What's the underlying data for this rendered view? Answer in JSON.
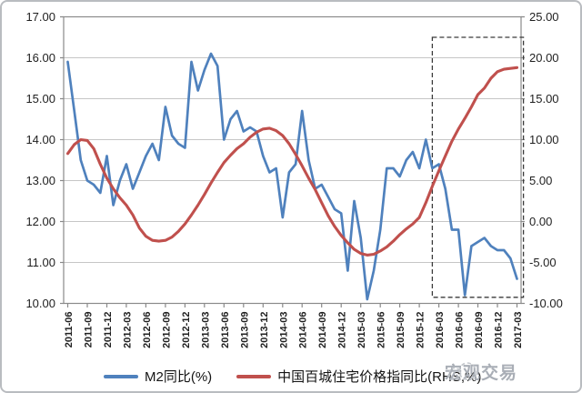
{
  "chart_data": {
    "type": "line",
    "title": "",
    "x": [
      "2011-06",
      "2011-07",
      "2011-08",
      "2011-09",
      "2011-10",
      "2011-11",
      "2011-12",
      "2012-01",
      "2012-02",
      "2012-03",
      "2012-04",
      "2012-05",
      "2012-06",
      "2012-07",
      "2012-08",
      "2012-09",
      "2012-10",
      "2012-11",
      "2012-12",
      "2013-01",
      "2013-02",
      "2013-03",
      "2013-04",
      "2013-05",
      "2013-06",
      "2013-07",
      "2013-08",
      "2013-09",
      "2013-10",
      "2013-11",
      "2013-12",
      "2014-01",
      "2014-02",
      "2014-03",
      "2014-04",
      "2014-05",
      "2014-06",
      "2014-07",
      "2014-08",
      "2014-09",
      "2014-10",
      "2014-11",
      "2014-12",
      "2015-01",
      "2015-02",
      "2015-03",
      "2015-04",
      "2015-05",
      "2015-06",
      "2015-07",
      "2015-08",
      "2015-09",
      "2015-10",
      "2015-11",
      "2015-12",
      "2016-01",
      "2016-02",
      "2016-03",
      "2016-04",
      "2016-05",
      "2016-06",
      "2016-07",
      "2016-08",
      "2016-09",
      "2016-10",
      "2016-11",
      "2016-12",
      "2017-01",
      "2017-02",
      "2017-03"
    ],
    "x_tick_every": 3,
    "x_tick_labels": [
      "2011-06",
      "2011-09",
      "2011-12",
      "2012-03",
      "2012-06",
      "2012-09",
      "2012-12",
      "2013-03",
      "2013-06",
      "2013-09",
      "2013-12",
      "2014-03",
      "2014-06",
      "2014-09",
      "2014-12",
      "2015-03",
      "2015-06",
      "2015-09",
      "2015-12",
      "2016-03",
      "2016-06",
      "2016-09",
      "2016-12",
      "2017-03"
    ],
    "series": [
      {
        "name": "M2同比(%)",
        "axis": "left",
        "color": "#4F81BD",
        "width": 2.7,
        "values": [
          15.9,
          14.7,
          13.5,
          13.0,
          12.9,
          12.7,
          13.6,
          12.4,
          13.0,
          13.4,
          12.8,
          13.2,
          13.6,
          13.9,
          13.5,
          14.8,
          14.1,
          13.9,
          13.8,
          15.9,
          15.2,
          15.7,
          16.1,
          15.8,
          14.0,
          14.5,
          14.7,
          14.2,
          14.3,
          14.2,
          13.6,
          13.2,
          13.3,
          12.1,
          13.2,
          13.4,
          14.7,
          13.5,
          12.8,
          12.9,
          12.6,
          12.3,
          12.2,
          10.8,
          12.5,
          11.6,
          10.1,
          10.8,
          11.8,
          13.3,
          13.3,
          13.1,
          13.5,
          13.7,
          13.3,
          14.0,
          13.3,
          13.4,
          12.8,
          11.8,
          11.8,
          10.2,
          11.4,
          11.5,
          11.6,
          11.4,
          11.3,
          11.3,
          11.1,
          10.6
        ]
      },
      {
        "name": "中国百城住宅价格指同比(RHS,%)",
        "axis": "right",
        "color": "#C0504D",
        "width": 3.1,
        "values": [
          8.3,
          9.4,
          10.0,
          9.9,
          8.9,
          7.0,
          5.3,
          4.0,
          2.9,
          2.0,
          0.8,
          -0.8,
          -1.8,
          -2.3,
          -2.4,
          -2.3,
          -1.9,
          -1.2,
          -0.3,
          0.8,
          2.0,
          3.3,
          4.7,
          6.0,
          7.2,
          8.1,
          8.9,
          9.5,
          10.3,
          10.9,
          11.3,
          11.4,
          11.1,
          10.5,
          9.5,
          8.2,
          6.8,
          5.3,
          3.9,
          2.3,
          0.7,
          -0.6,
          -1.7,
          -2.6,
          -3.4,
          -3.9,
          -4.1,
          -4.0,
          -3.6,
          -3.1,
          -2.4,
          -1.6,
          -0.9,
          -0.3,
          0.5,
          2.3,
          4.3,
          6.2,
          8.0,
          9.8,
          11.3,
          12.6,
          14.0,
          15.5,
          16.3,
          17.5,
          18.3,
          18.6,
          18.7,
          18.8
        ]
      }
    ],
    "left_axis": {
      "min": 10,
      "max": 17,
      "tick_values": [
        17,
        16,
        15,
        14,
        13,
        12,
        11,
        10
      ],
      "tick_labels": [
        "17.00",
        "16.00",
        "15.00",
        "14.00",
        "13.00",
        "12.00",
        "11.00",
        "10.00"
      ]
    },
    "right_axis": {
      "min": -10,
      "max": 25,
      "tick_values": [
        25,
        20,
        15,
        10,
        5,
        0,
        -5,
        -10
      ],
      "tick_labels": [
        "25.00",
        "20.00",
        "15.00",
        "10.00",
        "5.00",
        "0.00",
        "-5.00",
        "-10.00"
      ]
    },
    "grid": true,
    "legend_position": "bottom",
    "highlight_box": {
      "x_start_index": 56,
      "x_end_index": 70,
      "y_left_min": 10.15,
      "y_left_max": 16.5
    },
    "style": {
      "grid_color": "#c6c6c6",
      "axis_color": "#8a8a8a",
      "highlight_box_color": "#3a3a3a",
      "background": "#ffffff"
    }
  },
  "legend": {
    "items": [
      {
        "label": "M2同比(%)",
        "color": "#4F81BD"
      },
      {
        "label": "中国百城住宅价格指同比(RHS,%)",
        "color": "#C0504D"
      }
    ]
  },
  "watermark": {
    "text": "宏观交易",
    "logo": "cloud-logo"
  }
}
